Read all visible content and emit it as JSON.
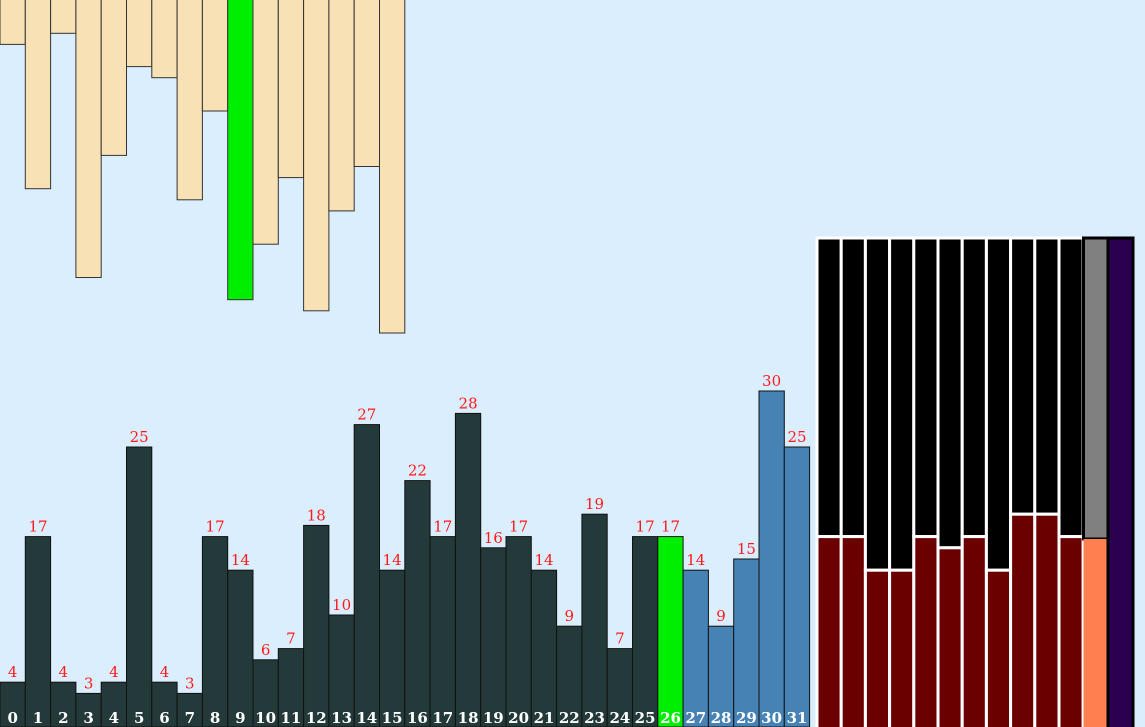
{
  "chart_data": {
    "type": "bar",
    "title": "",
    "xlabel": "",
    "ylabel": "",
    "categories": [
      "0",
      "1",
      "2",
      "3",
      "4",
      "5",
      "6",
      "7",
      "8",
      "9",
      "10",
      "11",
      "12",
      "13",
      "14",
      "15",
      "16",
      "17",
      "18",
      "19",
      "20",
      "21",
      "22",
      "23",
      "24",
      "25",
      "26",
      "27",
      "28",
      "29",
      "30",
      "31"
    ],
    "values": [
      4,
      17,
      4,
      3,
      4,
      25,
      4,
      3,
      17,
      14,
      6,
      7,
      18,
      10,
      27,
      14,
      22,
      17,
      28,
      16,
      17,
      14,
      9,
      19,
      7,
      17,
      17,
      14,
      9,
      15,
      30,
      25
    ],
    "highlight_index": 26,
    "highlight_color": "#00ee00",
    "base_color": "#243a3a",
    "sorted_color": "#4682b4",
    "sorted_from_index": 27,
    "label_color": "#ff1a1a",
    "index_label_color": "#ffffff",
    "top_bars": {
      "values": [
        4,
        17,
        3,
        25,
        14,
        6,
        7,
        18,
        10,
        27,
        22,
        16,
        28,
        19,
        15,
        30
      ],
      "highlight_index": 9,
      "color": "#f8e1b4",
      "highlight_color": "#00ee00"
    },
    "right_panel": {
      "columns": 12,
      "lower_levels": [
        17,
        17,
        14,
        14,
        17,
        16,
        17,
        14,
        19,
        19,
        17,
        17
      ],
      "top_color": "#000000",
      "lower_color": "#6b0000",
      "gray_color": "#808080",
      "orange_color": "#ff7f50",
      "purple_color": "#2c0050"
    }
  }
}
